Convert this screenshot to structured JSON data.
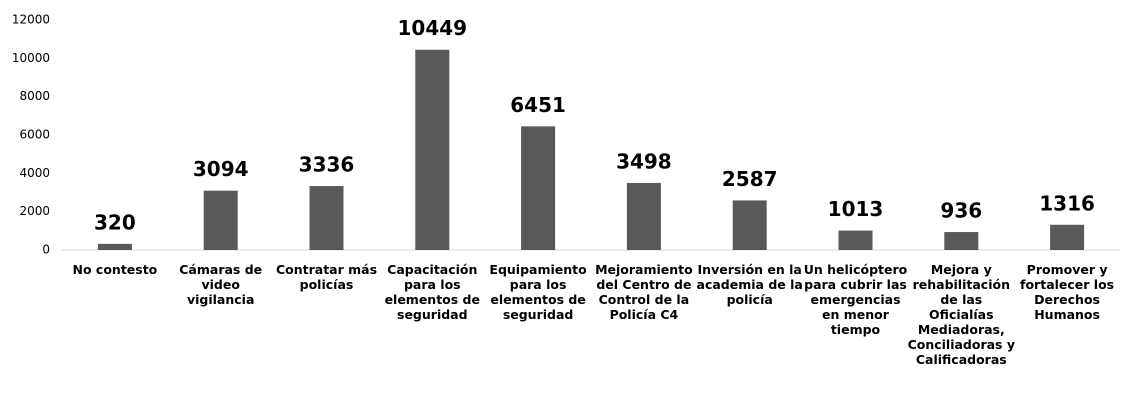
{
  "chart_data": {
    "type": "bar",
    "categories": [
      "No contesto",
      "Cámaras de video vigilancia",
      "Contratar más policías",
      "Capacitación para los elementos de seguridad",
      "Equipamiento para los elementos de seguridad",
      "Mejoramiento del Centro de Control de la Policía C4",
      "Inversión en la academia de la policía",
      "Un helicóptero para cubrir las emergencias en menor tiempo",
      "Mejora y rehabilitación de las Oficialías Mediadoras, Conciliadoras y Calificadoras",
      "Promover y fortalecer los Derechos Humanos"
    ],
    "values": [
      320,
      3094,
      3336,
      10449,
      6451,
      3498,
      2587,
      1013,
      936,
      1316
    ],
    "color": "#595959",
    "ylim": [
      0,
      12000
    ],
    "yticks": [
      0,
      2000,
      4000,
      6000,
      8000,
      10000,
      12000
    ],
    "grid": false
  }
}
